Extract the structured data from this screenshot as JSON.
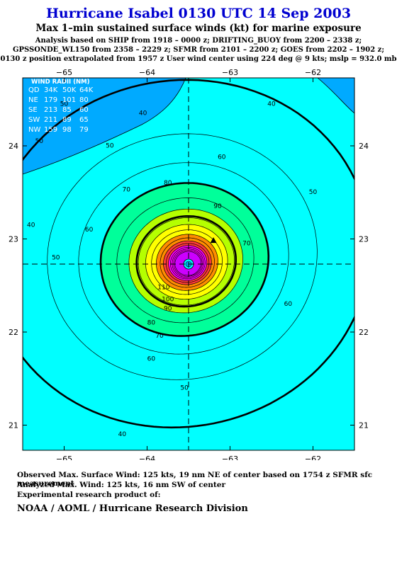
{
  "title": "Hurricane Isabel 0130 UTC 14 Sep 2003",
  "subtitle": "Max 1–min sustained surface winds (kt) for marine exposure",
  "analysis_lines": [
    "Analysis based on  SHIP from 1918 – 0000 z;  DRIFTING_BUOY from 2200 – 2338 z;",
    "GPSSONDE_WL150 from 2358 – 2229 z;  SFMR from 2101 – 2200 z;  GOES from 2202 – 1902 z;",
    "0130 z position extrapolated from 1957 z User wind center using 224 deg @ 9 kts; mslp = 932.0 mb"
  ],
  "footer": {
    "observed": "Observed Max. Surface Wind: 125 kts, 19 nm NE of center based on 1754 z SFMR sfc measurement",
    "analyzed": "Analyzed Max. Wind: 125 kts, 16 nm SW of center",
    "experimental": "Experimental research product of:",
    "credit": "NOAA / AOML / Hurricane Research Division"
  },
  "chart_data": {
    "type": "contour",
    "x_ticks": [
      -65,
      -64,
      -63,
      -62
    ],
    "x_tick_labels": [
      "−65",
      "−64",
      "−63",
      "−62"
    ],
    "y_ticks": [
      21,
      22,
      23,
      24
    ],
    "y_tick_labels": [
      "21",
      "22",
      "23",
      "24"
    ],
    "xlim": [
      -65.5,
      -61.5
    ],
    "ylim": [
      20.73,
      24.73
    ],
    "center": {
      "lon": -63.5,
      "lat": 22.73
    },
    "contour_interval_kt": 10,
    "contour_levels_kt": [
      40,
      50,
      60,
      70,
      80,
      90,
      100,
      110,
      120
    ],
    "bold_contour_levels_kt": [
      34,
      50,
      64
    ],
    "contour_labels": [
      {
        "value": "40",
        "lon": -64.05,
        "lat": 24.35
      },
      {
        "value": "40",
        "lon": -62.5,
        "lat": 24.45
      },
      {
        "value": "40",
        "lon": -65.4,
        "lat": 23.15
      },
      {
        "value": "40",
        "lon": -64.3,
        "lat": 20.9
      },
      {
        "value": "50",
        "lon": -65.0,
        "lat": 24.45
      },
      {
        "value": "50",
        "lon": -64.45,
        "lat": 24.0
      },
      {
        "value": "50",
        "lon": -65.3,
        "lat": 24.05
      },
      {
        "value": "50",
        "lon": -65.1,
        "lat": 22.8
      },
      {
        "value": "50",
        "lon": -62.0,
        "lat": 23.5
      },
      {
        "value": "50",
        "lon": -63.55,
        "lat": 21.4
      },
      {
        "value": "60",
        "lon": -63.1,
        "lat": 23.88
      },
      {
        "value": "60",
        "lon": -64.7,
        "lat": 23.1
      },
      {
        "value": "60",
        "lon": -62.3,
        "lat": 22.3
      },
      {
        "value": "60",
        "lon": -63.95,
        "lat": 21.71
      },
      {
        "value": "70",
        "lon": -64.25,
        "lat": 23.53
      },
      {
        "value": "70",
        "lon": -62.8,
        "lat": 22.95
      },
      {
        "value": "70",
        "lon": -63.85,
        "lat": 21.96
      },
      {
        "value": "80",
        "lon": -63.75,
        "lat": 23.6
      },
      {
        "value": "80",
        "lon": -63.95,
        "lat": 22.1
      },
      {
        "value": "90",
        "lon": -63.15,
        "lat": 23.35
      },
      {
        "value": "90",
        "lon": -63.75,
        "lat": 22.25
      },
      {
        "value": "100",
        "lon": -63.75,
        "lat": 22.35
      },
      {
        "value": "110",
        "lon": -63.8,
        "lat": 22.48
      }
    ],
    "observed_max_marker": {
      "lon": -63.2,
      "lat": 22.98,
      "symbol": "triangle"
    },
    "wind_radii_table": {
      "title": "WIND RADII (NM)",
      "columns": [
        "QD",
        "34K",
        "50K",
        "64K"
      ],
      "rows": [
        [
          "NE",
          "179",
          "101",
          "80"
        ],
        [
          "SE",
          "213",
          "85",
          "60"
        ],
        [
          "SW",
          "211",
          "89",
          "65"
        ],
        [
          "NW",
          "159",
          "98",
          "79"
        ]
      ]
    },
    "colors": {
      "lt40": "#00aaff",
      "40-50": "#00ffff",
      "50-60": "#00ff9a",
      "60-70": "#b5ff00",
      "70-80": "#ffff00",
      "80-90": "#ff8c00",
      "90-100": "#ff3a3a",
      "100-110": "#ff00ff",
      "110-120": "#ff00ff",
      "120+": "#cc00ff"
    }
  }
}
